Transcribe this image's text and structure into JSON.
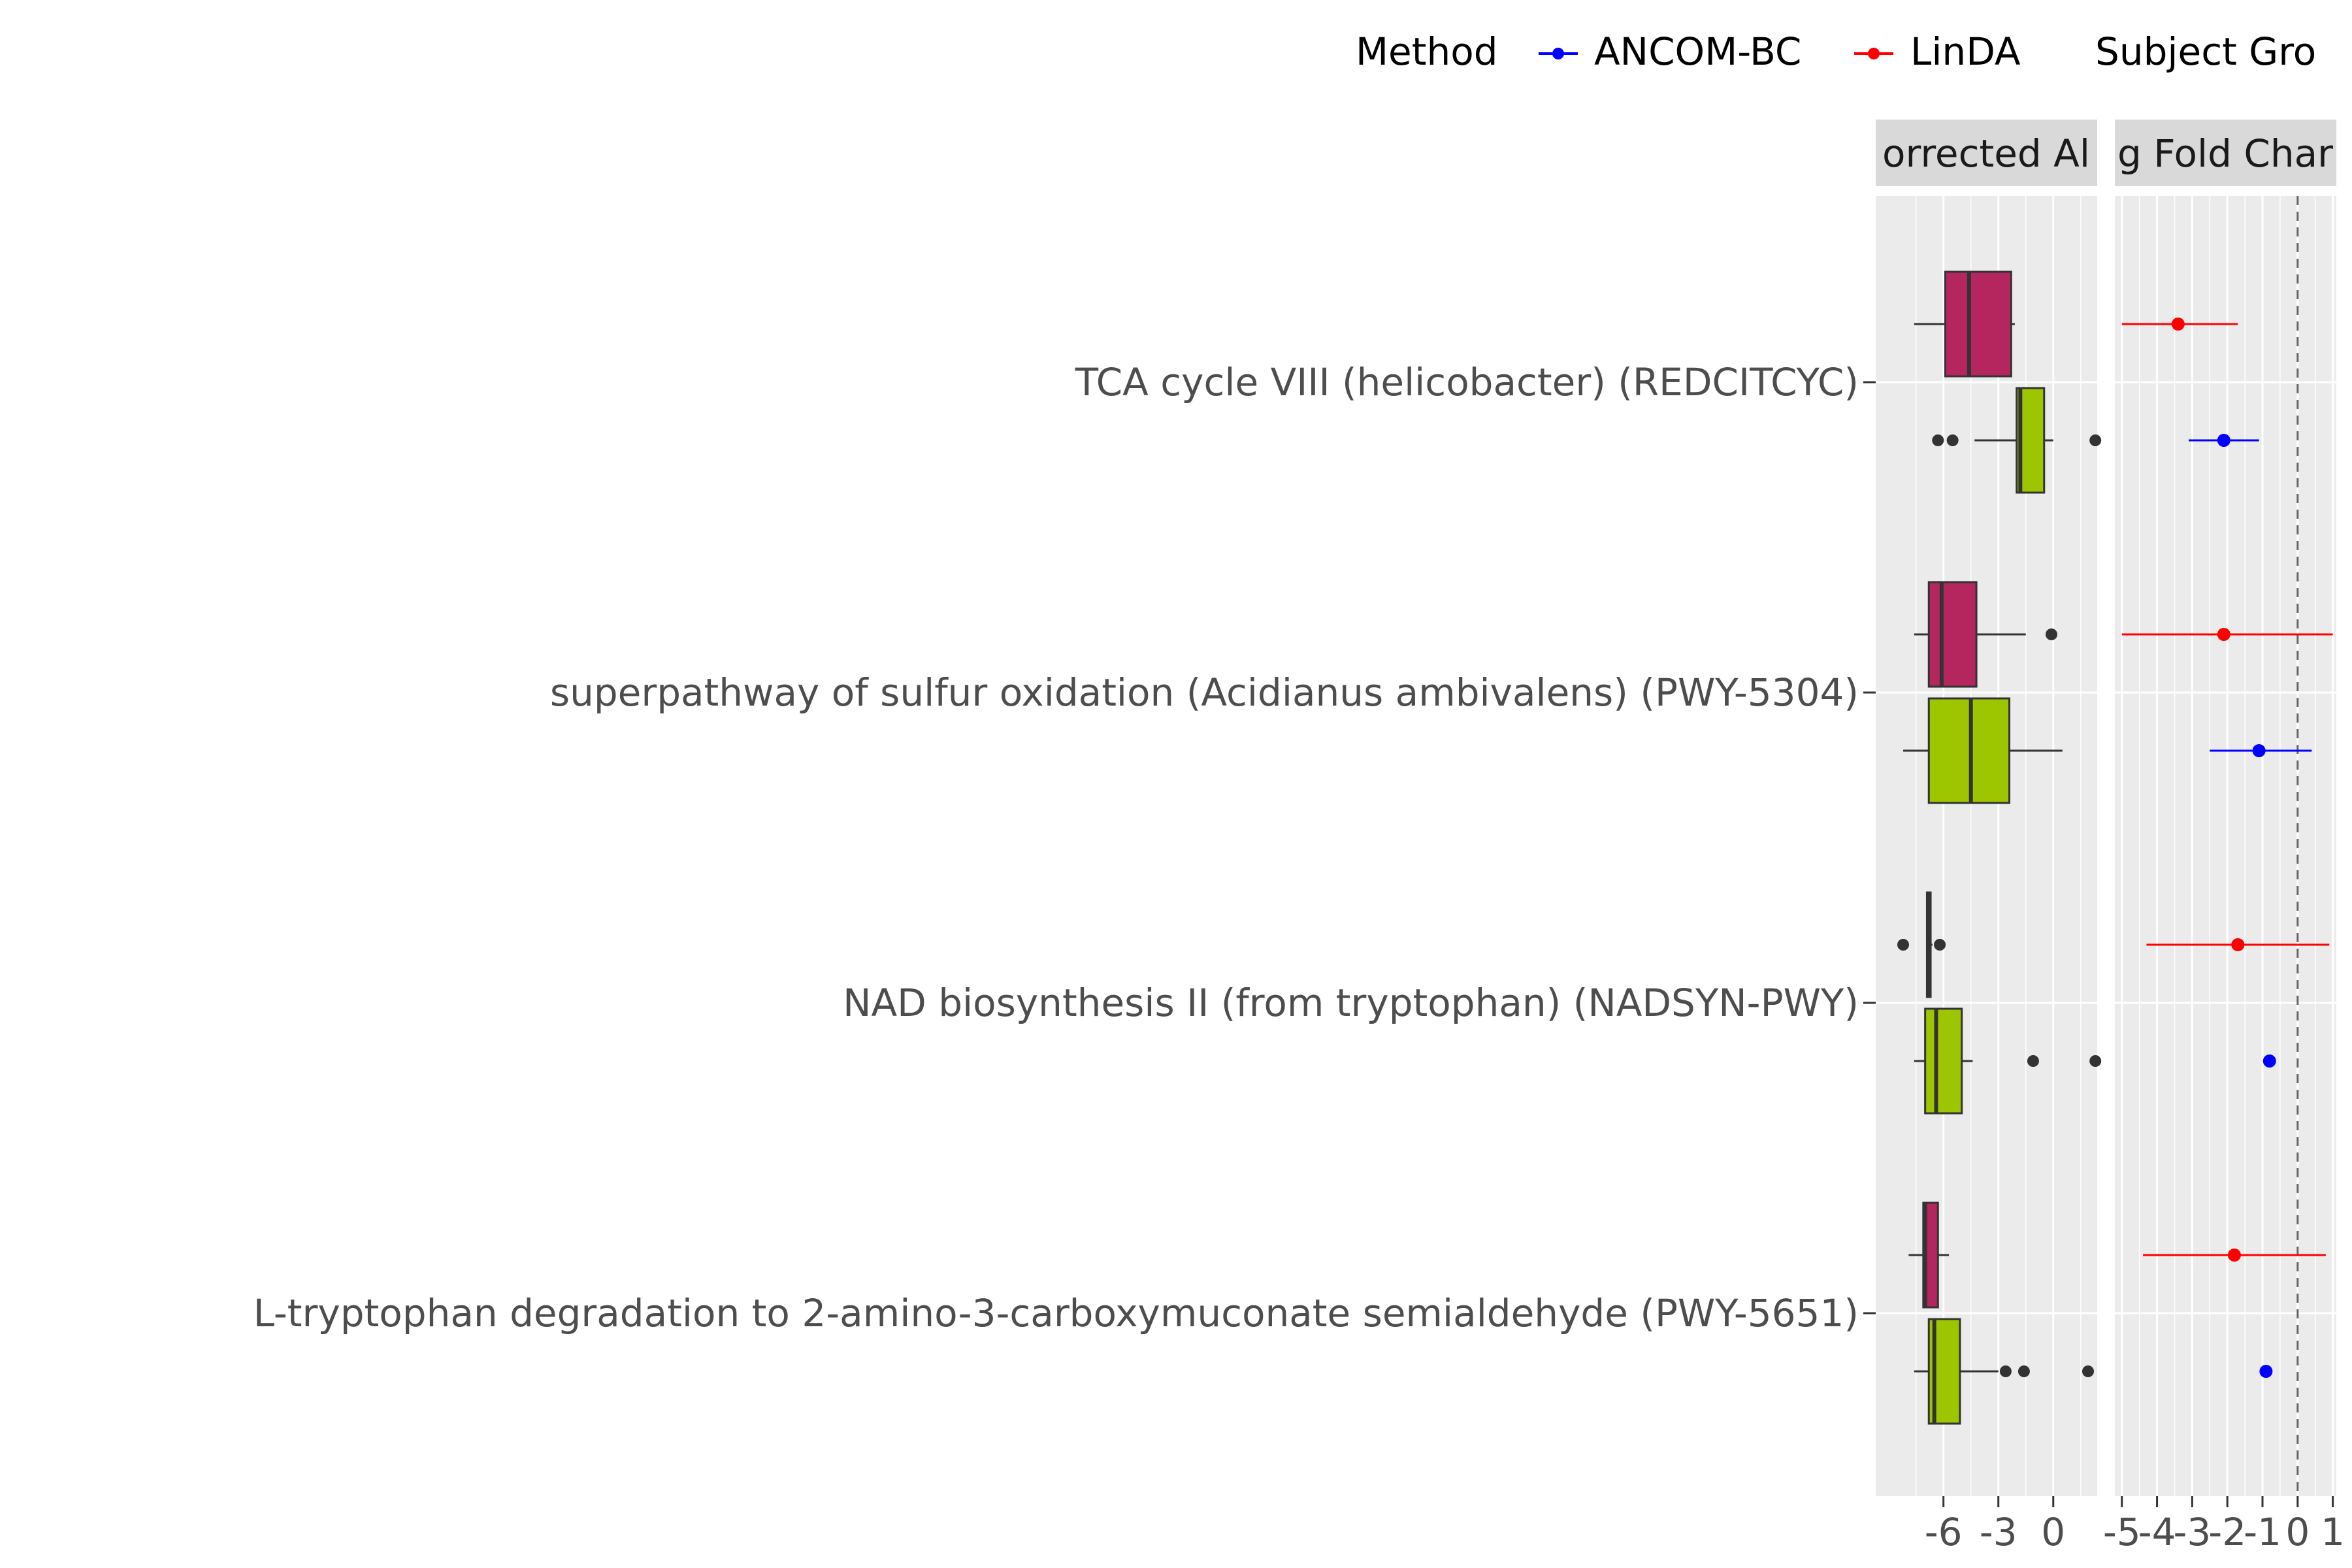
{
  "legend": {
    "method_title": "Method",
    "methods": [
      {
        "name": "ANCOM-BC",
        "color": "#0000ff"
      },
      {
        "name": "LinDA",
        "color": "#ff0000"
      }
    ],
    "group_title": "Subject Gro"
  },
  "colors": {
    "group_a": "#b5265e",
    "group_b": "#9ec600",
    "panel_bg": "#ebebeb",
    "strip_bg": "#d9d9d9",
    "text_dark": "#1a1a1a",
    "text_axis": "#4d4d4d"
  },
  "chart_data": [
    {
      "type": "boxplot",
      "panel": "left",
      "strip_label": "orrected Al",
      "xlim": [
        -9.7,
        2.4
      ],
      "xticks": [
        -6,
        -3,
        0
      ],
      "xtick_labels": [
        "-6",
        "-3",
        "0"
      ],
      "pathways": [
        "TCA cycle VIII (helicobacter) (REDCITCYC)",
        "superpathway of sulfur oxidation (Acidianus ambivalens) (PWY-5304)",
        "NAD biosynthesis II (from tryptophan) (NADSYN-PWY)",
        "L-tryptophan degradation to 2-amino-3-carboxymuconate semialdehyde (PWY-5651)"
      ],
      "boxes": [
        {
          "pathway": 0,
          "group": "group_a",
          "whisker_low": -7.6,
          "q1": -5.9,
          "median": -4.6,
          "q3": -2.3,
          "whisker_high": -2.1,
          "outliers": []
        },
        {
          "pathway": 0,
          "group": "group_b",
          "whisker_low": -4.3,
          "q1": -2.0,
          "median": -1.8,
          "q3": -0.5,
          "whisker_high": 0.0,
          "outliers": [
            -6.3,
            -5.5,
            2.3
          ]
        },
        {
          "pathway": 1,
          "group": "group_a",
          "whisker_low": -7.6,
          "q1": -6.8,
          "median": -6.1,
          "q3": -4.2,
          "whisker_high": -1.5,
          "outliers": [
            -0.1
          ]
        },
        {
          "pathway": 1,
          "group": "group_b",
          "whisker_low": -8.2,
          "q1": -6.8,
          "median": -4.5,
          "q3": -2.4,
          "whisker_high": 0.5,
          "outliers": []
        },
        {
          "pathway": 2,
          "group": "group_a",
          "whisker_low": -6.9,
          "q1": -6.9,
          "median": -6.8,
          "q3": -6.7,
          "whisker_high": -6.6,
          "outliers": [
            -8.2,
            -6.2
          ]
        },
        {
          "pathway": 2,
          "group": "group_b",
          "whisker_low": -7.6,
          "q1": -7.0,
          "median": -6.4,
          "q3": -5.0,
          "whisker_high": -4.4,
          "outliers": [
            -1.1,
            2.3
          ]
        },
        {
          "pathway": 3,
          "group": "group_a",
          "whisker_low": -7.9,
          "q1": -7.1,
          "median": -7.0,
          "q3": -6.3,
          "whisker_high": -5.7,
          "outliers": []
        },
        {
          "pathway": 3,
          "group": "group_b",
          "whisker_low": -7.6,
          "q1": -6.8,
          "median": -6.5,
          "q3": -5.1,
          "whisker_high": -3.0,
          "outliers": [
            -2.6,
            -1.6,
            1.9
          ]
        }
      ]
    },
    {
      "type": "dot-errorbar",
      "panel": "right",
      "strip_label": "g Fold Char",
      "xlim": [
        -5.2,
        1.1
      ],
      "xticks": [
        -5,
        -4,
        -3,
        -2,
        -1,
        0,
        1
      ],
      "xtick_labels": [
        "-5",
        "-4",
        "-3",
        "-2",
        "-1",
        "0",
        "1"
      ],
      "reference_line": 0,
      "estimates": [
        {
          "pathway": 0,
          "method": "LinDA",
          "estimate": -3.4,
          "lower": -5.0,
          "upper": -1.7
        },
        {
          "pathway": 0,
          "method": "ANCOM-BC",
          "estimate": -2.1,
          "lower": -3.1,
          "upper": -1.1
        },
        {
          "pathway": 1,
          "method": "LinDA",
          "estimate": -2.1,
          "lower": -5.0,
          "upper": 1.0
        },
        {
          "pathway": 1,
          "method": "ANCOM-BC",
          "estimate": -1.1,
          "lower": -2.5,
          "upper": 0.4
        },
        {
          "pathway": 2,
          "method": "LinDA",
          "estimate": -1.7,
          "lower": -4.3,
          "upper": 0.9
        },
        {
          "pathway": 2,
          "method": "ANCOM-BC",
          "estimate": -0.8,
          "lower": -0.8,
          "upper": -0.8
        },
        {
          "pathway": 3,
          "method": "LinDA",
          "estimate": -1.8,
          "lower": -4.4,
          "upper": 0.8
        },
        {
          "pathway": 3,
          "method": "ANCOM-BC",
          "estimate": -0.9,
          "lower": -0.9,
          "upper": -0.9
        }
      ]
    }
  ]
}
